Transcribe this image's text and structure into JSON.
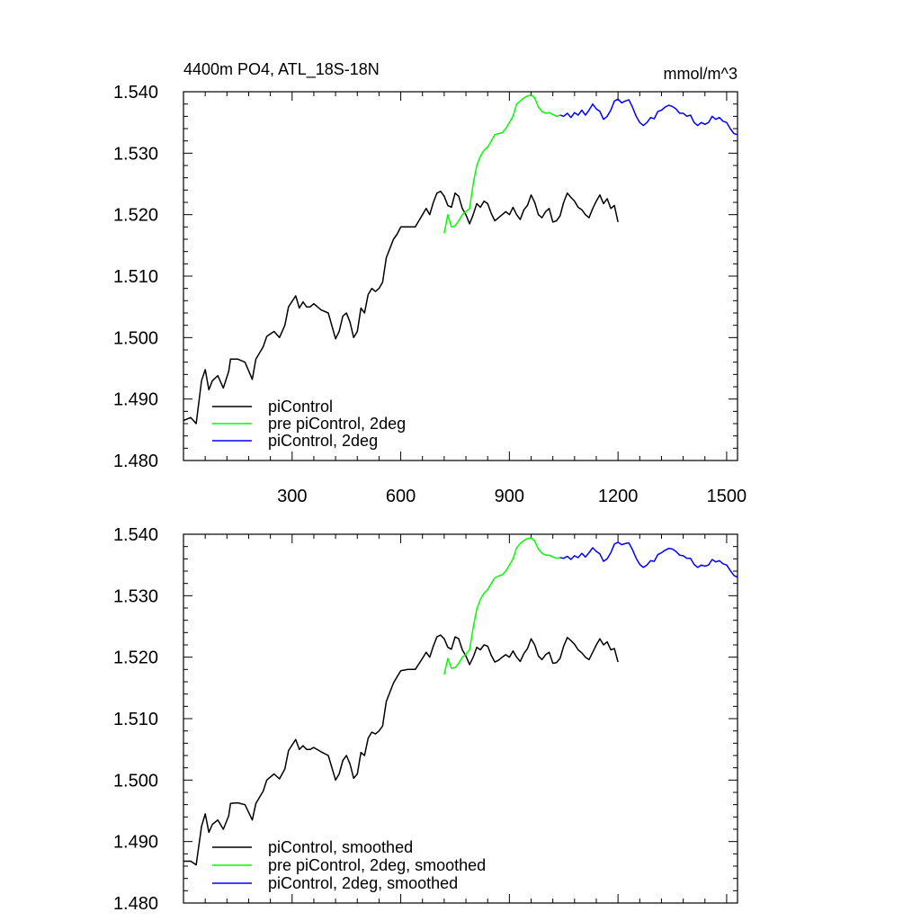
{
  "chart_data": [
    {
      "type": "line",
      "title_left": "4400m PO4, ATL_18S-18N",
      "title_right": "mmol/m^3",
      "xlabel": "",
      "ylabel": "",
      "xlim": [
        0,
        1530
      ],
      "ylim": [
        1.48,
        1.54
      ],
      "xticks": [
        300,
        600,
        900,
        1200,
        1500
      ],
      "xtick_labels": [
        "300",
        "600",
        "900",
        "1200",
        "1500"
      ],
      "yticks": [
        1.48,
        1.49,
        1.5,
        1.51,
        1.52,
        1.53,
        1.54
      ],
      "ytick_labels": [
        "1.480",
        "1.490",
        "1.500",
        "1.510",
        "1.520",
        "1.530",
        "1.540"
      ],
      "legend_position": "bottom-left",
      "series": [
        {
          "name": "piControl",
          "color": "#000000",
          "x": [
            0,
            20,
            35,
            50,
            60,
            70,
            80,
            95,
            110,
            125,
            130,
            150,
            170,
            190,
            200,
            220,
            230,
            250,
            265,
            280,
            290,
            310,
            320,
            330,
            340,
            350,
            360,
            380,
            400,
            420,
            430,
            440,
            450,
            460,
            470,
            480,
            490,
            500,
            510,
            520,
            530,
            540,
            550,
            560,
            570,
            580,
            590,
            600,
            620,
            640,
            660,
            670,
            680,
            690,
            700,
            710,
            720,
            730,
            740,
            750,
            760,
            770,
            780,
            790,
            800,
            810,
            820,
            830,
            840,
            850,
            860,
            870,
            880,
            890,
            900,
            910,
            920,
            930,
            940,
            950,
            960,
            970,
            980,
            990,
            1000,
            1010,
            1020,
            1030,
            1040,
            1050,
            1060,
            1070,
            1080,
            1090,
            1100,
            1110,
            1120,
            1130,
            1140,
            1150,
            1160,
            1170,
            1180,
            1190,
            1200
          ],
          "values": [
            1.4865,
            1.487,
            1.486,
            1.493,
            1.4948,
            1.4915,
            1.493,
            1.4938,
            1.4918,
            1.4945,
            1.4965,
            1.4965,
            1.496,
            1.4932,
            1.4965,
            1.4985,
            1.5002,
            1.501,
            1.5,
            1.502,
            1.505,
            1.5068,
            1.5048,
            1.5058,
            1.505,
            1.505,
            1.5055,
            1.5045,
            1.504,
            1.4998,
            1.501,
            1.5035,
            1.504,
            1.5025,
            1.5,
            1.501,
            1.5048,
            1.504,
            1.507,
            1.508,
            1.5075,
            1.508,
            1.509,
            1.513,
            1.5145,
            1.516,
            1.5168,
            1.518,
            1.518,
            1.518,
            1.52,
            1.521,
            1.52,
            1.522,
            1.5235,
            1.5238,
            1.523,
            1.5215,
            1.5212,
            1.5235,
            1.523,
            1.521,
            1.52,
            1.5185,
            1.52,
            1.5218,
            1.5212,
            1.5222,
            1.5218,
            1.5202,
            1.519,
            1.5195,
            1.52,
            1.5205,
            1.52,
            1.5212,
            1.52,
            1.5192,
            1.5208,
            1.5215,
            1.5232,
            1.522,
            1.52,
            1.5195,
            1.5205,
            1.521,
            1.5188,
            1.519,
            1.5198,
            1.522,
            1.5235,
            1.5228,
            1.5222,
            1.5212,
            1.5208,
            1.52,
            1.5195,
            1.521,
            1.5222,
            1.5232,
            1.5218,
            1.5226,
            1.521,
            1.5215,
            1.5188
          ]
        },
        {
          "name": "pre piControl, 2deg",
          "color": "#00ff00",
          "x": [
            720,
            730,
            740,
            750,
            760,
            770,
            780,
            790,
            800,
            810,
            820,
            830,
            840,
            850,
            860,
            870,
            880,
            890,
            900,
            910,
            920,
            930,
            940,
            950,
            960,
            970,
            980,
            990,
            1000,
            1010,
            1020,
            1030,
            1040
          ],
          "values": [
            1.517,
            1.52,
            1.518,
            1.5182,
            1.519,
            1.52,
            1.5205,
            1.521,
            1.525,
            1.528,
            1.5295,
            1.5305,
            1.531,
            1.532,
            1.533,
            1.5332,
            1.5333,
            1.534,
            1.535,
            1.536,
            1.538,
            1.5385,
            1.539,
            1.5393,
            1.5395,
            1.539,
            1.5375,
            1.5368,
            1.5365,
            1.5366,
            1.5363,
            1.536,
            1.5362
          ]
        },
        {
          "name": "piControl, 2deg",
          "color": "#0000ff",
          "x": [
            1040,
            1050,
            1060,
            1070,
            1080,
            1090,
            1100,
            1110,
            1120,
            1130,
            1140,
            1150,
            1160,
            1170,
            1180,
            1190,
            1200,
            1210,
            1220,
            1230,
            1240,
            1250,
            1260,
            1270,
            1280,
            1290,
            1300,
            1310,
            1320,
            1330,
            1340,
            1350,
            1360,
            1370,
            1380,
            1390,
            1400,
            1410,
            1420,
            1430,
            1440,
            1450,
            1460,
            1470,
            1480,
            1490,
            1500,
            1510,
            1520,
            1530
          ],
          "values": [
            1.5362,
            1.536,
            1.5365,
            1.5358,
            1.5366,
            1.5362,
            1.537,
            1.5362,
            1.537,
            1.538,
            1.5372,
            1.5368,
            1.5355,
            1.536,
            1.537,
            1.5385,
            1.5388,
            1.5382,
            1.5385,
            1.5387,
            1.5375,
            1.536,
            1.535,
            1.5345,
            1.535,
            1.5358,
            1.5356,
            1.5368,
            1.537,
            1.5375,
            1.5378,
            1.5376,
            1.5372,
            1.5365,
            1.5365,
            1.536,
            1.5362,
            1.535,
            1.5345,
            1.535,
            1.5347,
            1.535,
            1.536,
            1.5355,
            1.5358,
            1.5352,
            1.535,
            1.534,
            1.5332,
            1.533
          ]
        }
      ]
    },
    {
      "type": "line",
      "title_left": "",
      "title_right": "",
      "xlabel": "",
      "ylabel": "",
      "xlim": [
        0,
        1530
      ],
      "ylim": [
        1.48,
        1.54
      ],
      "xticks": [
        300,
        600,
        900,
        1200,
        1500
      ],
      "xtick_labels": [],
      "yticks": [
        1.48,
        1.49,
        1.5,
        1.51,
        1.52,
        1.53,
        1.54
      ],
      "ytick_labels": [
        "1.480",
        "1.490",
        "1.500",
        "1.510",
        "1.520",
        "1.530",
        "1.540"
      ],
      "legend_position": "bottom-left",
      "series": [
        {
          "name": "piControl, smoothed",
          "color": "#000000",
          "x": [
            0,
            20,
            35,
            50,
            60,
            70,
            80,
            95,
            110,
            125,
            130,
            150,
            170,
            190,
            200,
            220,
            230,
            250,
            265,
            280,
            290,
            310,
            320,
            330,
            340,
            350,
            360,
            380,
            400,
            420,
            430,
            440,
            450,
            460,
            470,
            480,
            490,
            500,
            510,
            520,
            530,
            540,
            550,
            560,
            570,
            580,
            590,
            600,
            620,
            640,
            660,
            670,
            680,
            690,
            700,
            710,
            720,
            730,
            740,
            750,
            760,
            770,
            780,
            790,
            800,
            810,
            820,
            830,
            840,
            850,
            860,
            870,
            880,
            890,
            900,
            910,
            920,
            930,
            940,
            950,
            960,
            970,
            980,
            990,
            1000,
            1010,
            1020,
            1030,
            1040,
            1050,
            1060,
            1070,
            1080,
            1090,
            1100,
            1110,
            1120,
            1130,
            1140,
            1150,
            1160,
            1170,
            1180,
            1190,
            1200
          ],
          "values": [
            1.4868,
            1.4868,
            1.4862,
            1.4925,
            1.4945,
            1.4915,
            1.4928,
            1.4935,
            1.492,
            1.4942,
            1.4962,
            1.4963,
            1.496,
            1.4935,
            1.4962,
            1.4982,
            1.5,
            1.501,
            1.5002,
            1.5018,
            1.5048,
            1.5066,
            1.505,
            1.5056,
            1.505,
            1.505,
            1.5053,
            1.5046,
            1.504,
            1.5,
            1.501,
            1.5032,
            1.504,
            1.5026,
            1.5003,
            1.501,
            1.5045,
            1.504,
            1.5068,
            1.5078,
            1.5075,
            1.508,
            1.5088,
            1.5128,
            1.5143,
            1.5158,
            1.5168,
            1.5178,
            1.518,
            1.518,
            1.5198,
            1.5208,
            1.52,
            1.5218,
            1.5233,
            1.5236,
            1.523,
            1.5216,
            1.5213,
            1.5233,
            1.523,
            1.5212,
            1.5202,
            1.5188,
            1.52,
            1.5216,
            1.5212,
            1.522,
            1.5218,
            1.5203,
            1.5192,
            1.5195,
            1.52,
            1.5204,
            1.52,
            1.521,
            1.52,
            1.5193,
            1.5206,
            1.5214,
            1.523,
            1.522,
            1.5202,
            1.5196,
            1.5204,
            1.5208,
            1.519,
            1.5191,
            1.5198,
            1.5218,
            1.5232,
            1.5227,
            1.5221,
            1.5212,
            1.5207,
            1.52,
            1.5196,
            1.5208,
            1.522,
            1.523,
            1.522,
            1.5225,
            1.5212,
            1.5214,
            1.5192
          ]
        },
        {
          "name": "pre piControl, 2deg, smoothed",
          "color": "#00ff00",
          "x": [
            720,
            730,
            740,
            750,
            760,
            770,
            780,
            790,
            800,
            810,
            820,
            830,
            840,
            850,
            860,
            870,
            880,
            890,
            900,
            910,
            920,
            930,
            940,
            950,
            960,
            970,
            980,
            990,
            1000,
            1010,
            1020,
            1030,
            1040
          ],
          "values": [
            1.5172,
            1.5198,
            1.5182,
            1.5183,
            1.519,
            1.52,
            1.5205,
            1.5212,
            1.5248,
            1.5278,
            1.5294,
            1.5304,
            1.531,
            1.532,
            1.5329,
            1.5332,
            1.5334,
            1.534,
            1.535,
            1.536,
            1.5378,
            1.5385,
            1.539,
            1.5393,
            1.5394,
            1.5389,
            1.5376,
            1.5369,
            1.5366,
            1.5366,
            1.5363,
            1.5361,
            1.5362
          ]
        },
        {
          "name": "piControl, 2deg, smoothed",
          "color": "#0000ff",
          "x": [
            1040,
            1050,
            1060,
            1070,
            1080,
            1090,
            1100,
            1110,
            1120,
            1130,
            1140,
            1150,
            1160,
            1170,
            1180,
            1190,
            1200,
            1210,
            1220,
            1230,
            1240,
            1250,
            1260,
            1270,
            1280,
            1290,
            1300,
            1310,
            1320,
            1330,
            1340,
            1350,
            1360,
            1370,
            1380,
            1390,
            1400,
            1410,
            1420,
            1430,
            1440,
            1450,
            1460,
            1470,
            1480,
            1490,
            1500,
            1510,
            1520,
            1530
          ],
          "values": [
            1.5362,
            1.5361,
            1.5364,
            1.5359,
            1.5365,
            1.5362,
            1.5369,
            1.5363,
            1.537,
            1.5378,
            1.5372,
            1.5368,
            1.5356,
            1.536,
            1.537,
            1.5384,
            1.5387,
            1.5383,
            1.5385,
            1.5386,
            1.5375,
            1.5361,
            1.5351,
            1.5346,
            1.535,
            1.5357,
            1.5356,
            1.5367,
            1.537,
            1.5374,
            1.5377,
            1.5376,
            1.5372,
            1.5366,
            1.5365,
            1.5361,
            1.5361,
            1.5351,
            1.5346,
            1.535,
            1.5348,
            1.535,
            1.5359,
            1.5355,
            1.5357,
            1.5352,
            1.535,
            1.5341,
            1.5333,
            1.533
          ]
        }
      ]
    }
  ]
}
